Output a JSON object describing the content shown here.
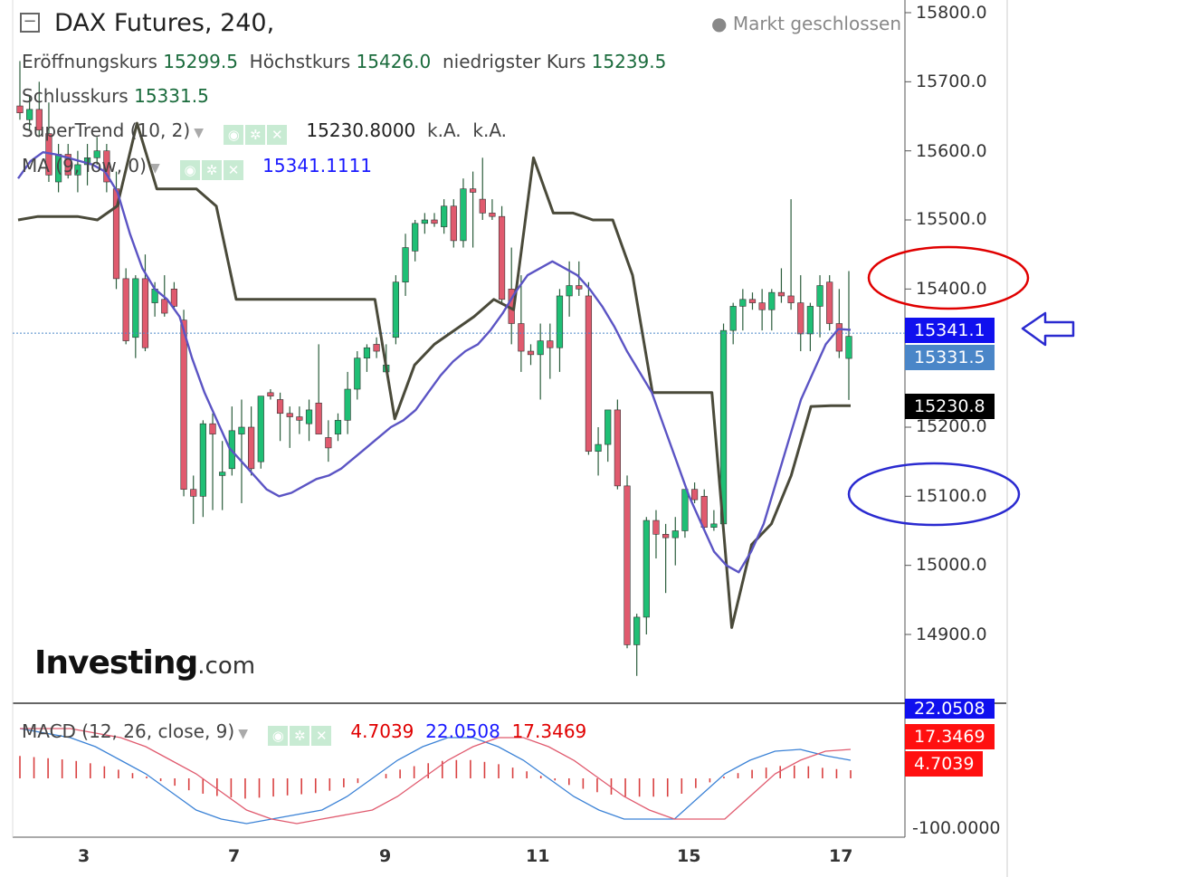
{
  "header": {
    "title": "DAX Futures, 240,",
    "status": "Markt geschlossen",
    "ohlc": [
      {
        "label": "Eröffnungskurs",
        "value": "15299.5"
      },
      {
        "label": "Höchstkurs",
        "value": "15426.0"
      },
      {
        "label": "niedrigster Kurs",
        "value": "15239.5"
      },
      {
        "label": "Schlusskurs",
        "value": "15331.5"
      }
    ]
  },
  "indicators": {
    "supertrend": {
      "label": "SuperTrend (10, 2)",
      "value": "15230.8000",
      "v2": "k.A.",
      "v3": "k.A."
    },
    "ma": {
      "label": "MA (9, low, 0)",
      "value": "15341.1111"
    },
    "macd": {
      "label": "MACD (12, 26, close, 9)",
      "hist": "4.7039",
      "macd": "22.0508",
      "signal": "17.3469"
    }
  },
  "logo": {
    "main": "Investing",
    "suffix": ".com"
  },
  "price_tags": {
    "ma": "15341.1",
    "close": "15331.5",
    "supertrend": "15230.8",
    "macd": "22.0508",
    "signal": "17.3469",
    "hist": "4.7039"
  },
  "colors": {
    "up": "#1fbf75",
    "down": "#e05a6e",
    "ma_line": "#5b54c4",
    "supertrend": "#4a4a3a",
    "macd_line": "#3b82d6",
    "signal_line": "#e05a6e",
    "hist": "#d94040",
    "annotation_red": "#e00000",
    "annotation_blue": "#2a2ad0"
  },
  "chart_data": {
    "type": "candlestick",
    "y_axis": {
      "ticks": [
        "15800.0",
        "15700.0",
        "15600.0",
        "15500.0",
        "15400.0",
        "15300.0",
        "15200.0",
        "15100.0",
        "15000.0",
        "14900.0"
      ],
      "ylim": [
        14820,
        15820
      ]
    },
    "x_axis": {
      "ticks": [
        "3",
        "7",
        "9",
        "11",
        "15",
        "17"
      ]
    },
    "candles_ohlc": [
      [
        15665,
        15730,
        15645,
        15655
      ],
      [
        15645,
        15680,
        15630,
        15660
      ],
      [
        15660,
        15700,
        15620,
        15630
      ],
      [
        15625,
        15670,
        15555,
        15565
      ],
      [
        15555,
        15610,
        15540,
        15595
      ],
      [
        15595,
        15610,
        15560,
        15565
      ],
      [
        15565,
        15600,
        15540,
        15580
      ],
      [
        15580,
        15610,
        15550,
        15590
      ],
      [
        15590,
        15620,
        15580,
        15600
      ],
      [
        15600,
        15610,
        15540,
        15555
      ],
      [
        15545,
        15570,
        15400,
        15415
      ],
      [
        15415,
        15430,
        15320,
        15325
      ],
      [
        15330,
        15420,
        15300,
        15415
      ],
      [
        15415,
        15450,
        15310,
        15315
      ],
      [
        15380,
        15410,
        15360,
        15400
      ],
      [
        15385,
        15420,
        15360,
        15365
      ],
      [
        15400,
        15410,
        15370,
        15375
      ],
      [
        15355,
        15370,
        15100,
        15110
      ],
      [
        15110,
        15130,
        15060,
        15100
      ],
      [
        15100,
        15210,
        15070,
        15205
      ],
      [
        15205,
        15220,
        15080,
        15190
      ],
      [
        15130,
        15180,
        15080,
        15135
      ],
      [
        15140,
        15230,
        15130,
        15195
      ],
      [
        15190,
        15240,
        15090,
        15200
      ],
      [
        15200,
        15230,
        15130,
        15140
      ],
      [
        15150,
        15245,
        15140,
        15245
      ],
      [
        15250,
        15255,
        15240,
        15245
      ],
      [
        15240,
        15250,
        15180,
        15220
      ],
      [
        15220,
        15230,
        15170,
        15215
      ],
      [
        15215,
        15230,
        15190,
        15210
      ],
      [
        15205,
        15240,
        15180,
        15225
      ],
      [
        15235,
        15320,
        15190,
        15190
      ],
      [
        15185,
        15210,
        15150,
        15170
      ],
      [
        15190,
        15220,
        15180,
        15210
      ],
      [
        15210,
        15280,
        15190,
        15255
      ],
      [
        15255,
        15310,
        15240,
        15300
      ],
      [
        15300,
        15320,
        15280,
        15315
      ],
      [
        15320,
        15330,
        15300,
        15310
      ],
      [
        15280,
        15320,
        15280,
        15290
      ],
      [
        15330,
        15420,
        15320,
        15410
      ],
      [
        15410,
        15480,
        15390,
        15460
      ],
      [
        15455,
        15500,
        15440,
        15495
      ],
      [
        15495,
        15510,
        15480,
        15500
      ],
      [
        15500,
        15510,
        15490,
        15495
      ],
      [
        15490,
        15530,
        15480,
        15520
      ],
      [
        15520,
        15530,
        15460,
        15470
      ],
      [
        15470,
        15560,
        15460,
        15545
      ],
      [
        15545,
        15570,
        15460,
        15540
      ],
      [
        15530,
        15590,
        15500,
        15510
      ],
      [
        15510,
        15530,
        15500,
        15505
      ],
      [
        15505,
        15520,
        15380,
        15385
      ],
      [
        15400,
        15460,
        15320,
        15350
      ],
      [
        15350,
        15420,
        15280,
        15310
      ],
      [
        15310,
        15320,
        15290,
        15305
      ],
      [
        15305,
        15350,
        15240,
        15325
      ],
      [
        15325,
        15350,
        15270,
        15315
      ],
      [
        15315,
        15400,
        15280,
        15390
      ],
      [
        15390,
        15440,
        15360,
        15405
      ],
      [
        15405,
        15440,
        15390,
        15400
      ],
      [
        15390,
        15410,
        15160,
        15165
      ],
      [
        15165,
        15200,
        15130,
        15175
      ],
      [
        15175,
        15220,
        15150,
        15225
      ],
      [
        15225,
        15240,
        15110,
        15115
      ],
      [
        15115,
        15130,
        14880,
        14885
      ],
      [
        14885,
        14930,
        14840,
        14925
      ],
      [
        14925,
        15070,
        14900,
        15065
      ],
      [
        15065,
        15080,
        15010,
        15045
      ],
      [
        15045,
        15060,
        14960,
        15040
      ],
      [
        15040,
        15070,
        15000,
        15050
      ],
      [
        15050,
        15110,
        15040,
        15110
      ],
      [
        15110,
        15120,
        15090,
        15095
      ],
      [
        15100,
        15110,
        15050,
        15055
      ],
      [
        15055,
        15080,
        15050,
        15060
      ],
      [
        15060,
        15350,
        15050,
        15340
      ],
      [
        15340,
        15380,
        15320,
        15375
      ],
      [
        15375,
        15400,
        15340,
        15385
      ],
      [
        15385,
        15395,
        15370,
        15380
      ],
      [
        15380,
        15400,
        15340,
        15370
      ],
      [
        15370,
        15400,
        15340,
        15395
      ],
      [
        15395,
        15430,
        15380,
        15390
      ],
      [
        15390,
        15530,
        15370,
        15380
      ],
      [
        15380,
        15420,
        15310,
        15335
      ],
      [
        15335,
        15380,
        15310,
        15375
      ],
      [
        15375,
        15420,
        15330,
        15405
      ],
      [
        15410,
        15420,
        15340,
        15350
      ],
      [
        15350,
        15400,
        15300,
        15310
      ],
      [
        15299.5,
        15426,
        15239.5,
        15331.5
      ]
    ],
    "ma_line": [
      15560,
      15585,
      15598,
      15595,
      15590,
      15585,
      15580,
      15570,
      15540,
      15480,
      15430,
      15400,
      15385,
      15360,
      15300,
      15250,
      15210,
      15170,
      15150,
      15130,
      15110,
      15100,
      15105,
      15115,
      15125,
      15130,
      15140,
      15155,
      15170,
      15185,
      15200,
      15210,
      15225,
      15250,
      15275,
      15295,
      15310,
      15320,
      15340,
      15365,
      15395,
      15420,
      15430,
      15440,
      15430,
      15420,
      15400,
      15375,
      15345,
      15310,
      15280,
      15250,
      15200,
      15150,
      15100,
      15060,
      15020,
      15000,
      14990,
      15020,
      15060,
      15120,
      15180,
      15240,
      15280,
      15320,
      15342,
      15341
    ],
    "supertrend_line": [
      15500,
      15505,
      15505,
      15505,
      15500,
      15520,
      15640,
      15545,
      15545,
      15545,
      15520,
      15385,
      15385,
      15385,
      15385,
      15385,
      15385,
      15385,
      15385,
      15212,
      15290,
      15320,
      15340,
      15360,
      15385,
      15370,
      15590,
      15510,
      15510,
      15500,
      15500,
      15420,
      15250,
      15250,
      15250,
      15250,
      14910,
      15030,
      15060,
      15130,
      15230,
      15231,
      15231
    ],
    "macd": {
      "series": [
        {
          "name": "",
          "values": [
            0.55,
            0.5,
            0.45,
            0.35,
            0.2,
            0.05,
            -0.15,
            -0.35,
            -0.45,
            -0.5,
            -0.45,
            -0.4,
            -0.35,
            -0.2,
            0.0,
            0.2,
            0.35,
            0.45,
            0.45,
            0.35,
            0.2,
            0.0,
            -0.2,
            -0.35,
            -0.45,
            -0.45,
            -0.45,
            -0.2,
            0.05,
            0.2,
            0.3,
            0.32,
            0.25,
            0.2
          ]
        }
      ],
      "ylim": [
        -0.6,
        0.7
      ]
    }
  }
}
